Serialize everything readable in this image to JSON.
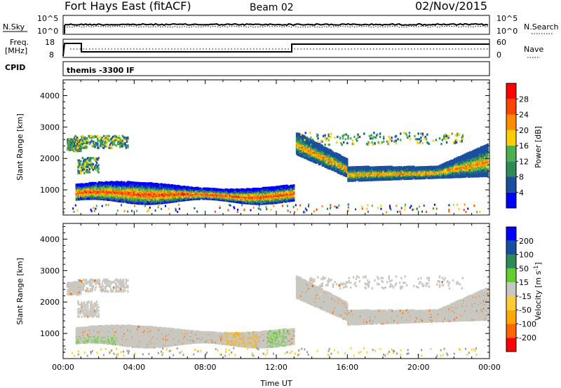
{
  "header": {
    "station": "Fort Hays East (fitACF)",
    "beam": "Beam 02",
    "date": "02/Nov/2015"
  },
  "top_panels": {
    "nsky": {
      "left_label": "N.Sky",
      "right_label": "N.Search",
      "left_ticks": [
        "10^5",
        "10^0"
      ],
      "right_ticks": [
        "10^5",
        "10^0"
      ]
    },
    "freq": {
      "left_label_1": "Freq.",
      "left_label_2": "[MHz]",
      "right_label": "Nave",
      "left_ticks": [
        "18",
        "8"
      ],
      "right_ticks": [
        "60",
        "0"
      ]
    },
    "cpid": {
      "label": "CPID",
      "value": "themis -3300 IF"
    }
  },
  "colors": {
    "power": [
      "#0000ff",
      "#1a4fa0",
      "#2e8b57",
      "#4caf50",
      "#ffcc00",
      "#ff8c00",
      "#ff4500",
      "#ff0000"
    ],
    "velocity": [
      "#ff0000",
      "#ff6600",
      "#ffaa00",
      "#ffcc33",
      "#c8c8c0",
      "#66cc33",
      "#2e8b57",
      "#1a4fa0",
      "#0000ff"
    ],
    "ground": "#999999"
  },
  "chart_data": [
    {
      "type": "heatmap",
      "panel": "power",
      "ylabel": "Slant Range [km]",
      "x_ticks": [
        "00:00",
        "04:00",
        "08:00",
        "12:00",
        "16:00",
        "20:00",
        "00:00"
      ],
      "y_ticks": [
        1000,
        2000,
        3000,
        4000
      ],
      "xlim_hours": [
        0,
        24
      ],
      "ylim_km": [
        200,
        4500
      ],
      "colorbar": {
        "label": "Power [dB]",
        "ticks": [
          "28",
          "24",
          "20",
          "16",
          "12",
          "8",
          "4"
        ]
      }
    },
    {
      "type": "heatmap",
      "panel": "velocity",
      "ylabel": "Slant Range [km]",
      "xlabel": "Time UT",
      "x_ticks": [
        "00:00",
        "04:00",
        "08:00",
        "12:00",
        "16:00",
        "20:00",
        "00:00"
      ],
      "y_ticks": [
        1000,
        2000,
        3000,
        4000
      ],
      "xlim_hours": [
        0,
        24
      ],
      "ylim_km": [
        200,
        4500
      ],
      "colorbar": {
        "label": "Velocity [m s^-1]",
        "ticks": [
          "200",
          "100",
          "50",
          "15",
          "-15",
          "-50",
          "-100",
          "-200"
        ]
      }
    }
  ]
}
